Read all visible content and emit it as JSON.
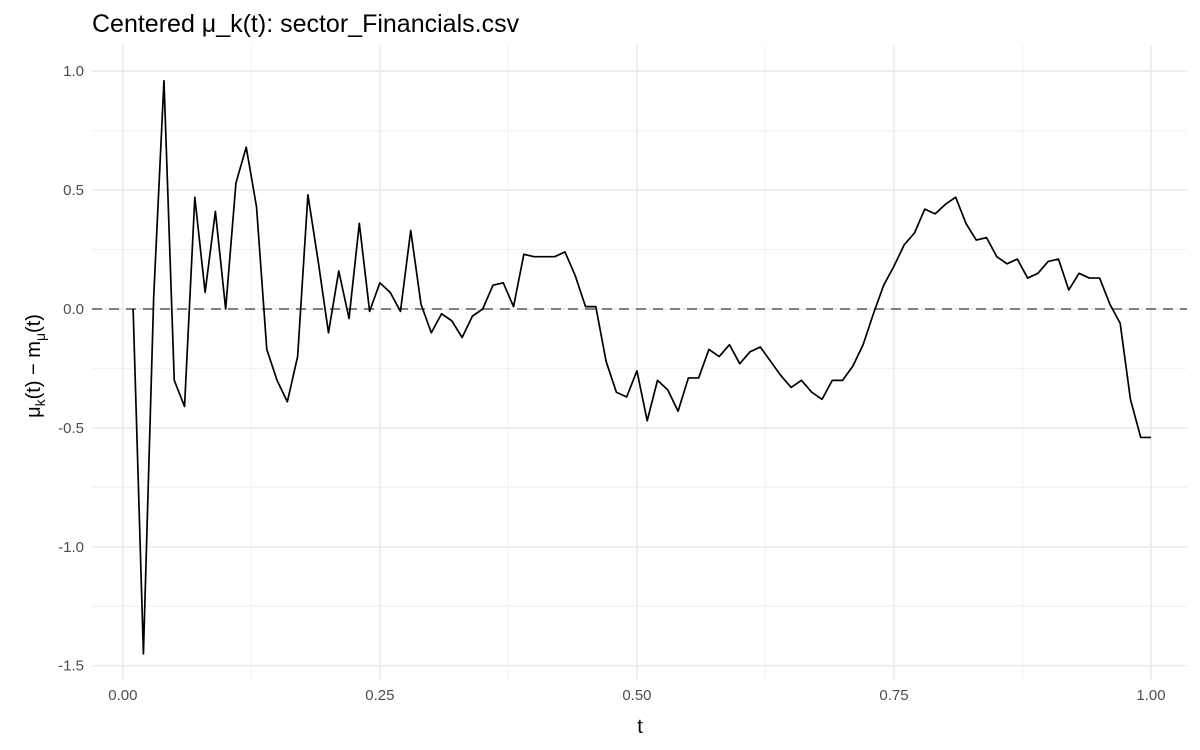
{
  "chart_data": {
    "type": "line",
    "title": "Centered μ_k(t): sector_Financials.csv",
    "xlabel": "t",
    "ylabel": {
      "mu": "μ",
      "k": "k",
      "t1": "(t)",
      "minus": " − ",
      "m": "m",
      "mu_sub": "μ",
      "t2": "(t)"
    },
    "xlim": [
      -0.03,
      1.035
    ],
    "ylim": [
      -1.56,
      1.11
    ],
    "x_ticks": [
      0.0,
      0.25,
      0.5,
      0.75,
      1.0
    ],
    "x_tick_labels": [
      "0.00",
      "0.25",
      "0.50",
      "0.75",
      "1.00"
    ],
    "y_ticks": [
      1.0,
      0.5,
      0.0,
      -0.5,
      -1.0,
      -1.5
    ],
    "y_tick_labels": [
      "1.0",
      "0.5",
      "0.0",
      "-0.5",
      "-1.0",
      "-1.5"
    ],
    "grid": true,
    "reference_line": {
      "y": 0,
      "style": "dashed",
      "color": "#808080"
    },
    "series": [
      {
        "color": "#000000",
        "x": [
          0.01,
          0.02,
          0.03,
          0.04,
          0.05,
          0.06,
          0.07,
          0.08,
          0.09,
          0.1,
          0.11,
          0.12,
          0.13,
          0.14,
          0.15,
          0.16,
          0.17,
          0.18,
          0.19,
          0.2,
          0.21,
          0.22,
          0.23,
          0.24,
          0.25,
          0.26,
          0.27,
          0.28,
          0.29,
          0.3,
          0.31,
          0.32,
          0.33,
          0.34,
          0.35,
          0.36,
          0.37,
          0.38,
          0.39,
          0.4,
          0.41,
          0.42,
          0.43,
          0.44,
          0.45,
          0.46,
          0.47,
          0.48,
          0.49,
          0.5,
          0.51,
          0.52,
          0.53,
          0.54,
          0.55,
          0.56,
          0.57,
          0.58,
          0.59,
          0.6,
          0.61,
          0.62,
          0.63,
          0.64,
          0.65,
          0.66,
          0.67,
          0.68,
          0.69,
          0.7,
          0.71,
          0.72,
          0.73,
          0.74,
          0.75,
          0.76,
          0.77,
          0.78,
          0.79,
          0.8,
          0.81,
          0.82,
          0.83,
          0.84,
          0.85,
          0.86,
          0.87,
          0.88,
          0.89,
          0.9,
          0.91,
          0.92,
          0.93,
          0.94,
          0.95,
          0.96,
          0.97,
          0.98,
          0.99,
          1.0
        ],
        "y": [
          0.0,
          -1.45,
          0.05,
          0.96,
          -0.3,
          -0.41,
          0.47,
          0.07,
          0.41,
          0.0,
          0.53,
          0.68,
          0.43,
          -0.17,
          -0.3,
          -0.39,
          -0.2,
          0.48,
          0.2,
          -0.1,
          0.16,
          -0.04,
          0.36,
          -0.01,
          0.11,
          0.07,
          -0.01,
          0.33,
          0.02,
          -0.1,
          -0.02,
          -0.05,
          -0.12,
          -0.03,
          0.0,
          0.1,
          0.11,
          0.01,
          0.23,
          0.22,
          0.22,
          0.22,
          0.24,
          0.14,
          0.01,
          0.01,
          -0.22,
          -0.35,
          -0.37,
          -0.26,
          -0.47,
          -0.3,
          -0.34,
          -0.43,
          -0.29,
          -0.29,
          -0.17,
          -0.2,
          -0.15,
          -0.23,
          -0.18,
          -0.16,
          -0.22,
          -0.28,
          -0.33,
          -0.3,
          -0.35,
          -0.38,
          -0.3,
          -0.3,
          -0.24,
          -0.15,
          -0.02,
          0.1,
          0.18,
          0.27,
          0.32,
          0.42,
          0.4,
          0.44,
          0.47,
          0.36,
          0.29,
          0.3,
          0.22,
          0.19,
          0.21,
          0.13,
          0.15,
          0.2,
          0.21,
          0.08,
          0.15,
          0.13,
          0.13,
          0.02,
          -0.06,
          -0.38,
          -0.54,
          -0.54
        ]
      }
    ]
  }
}
